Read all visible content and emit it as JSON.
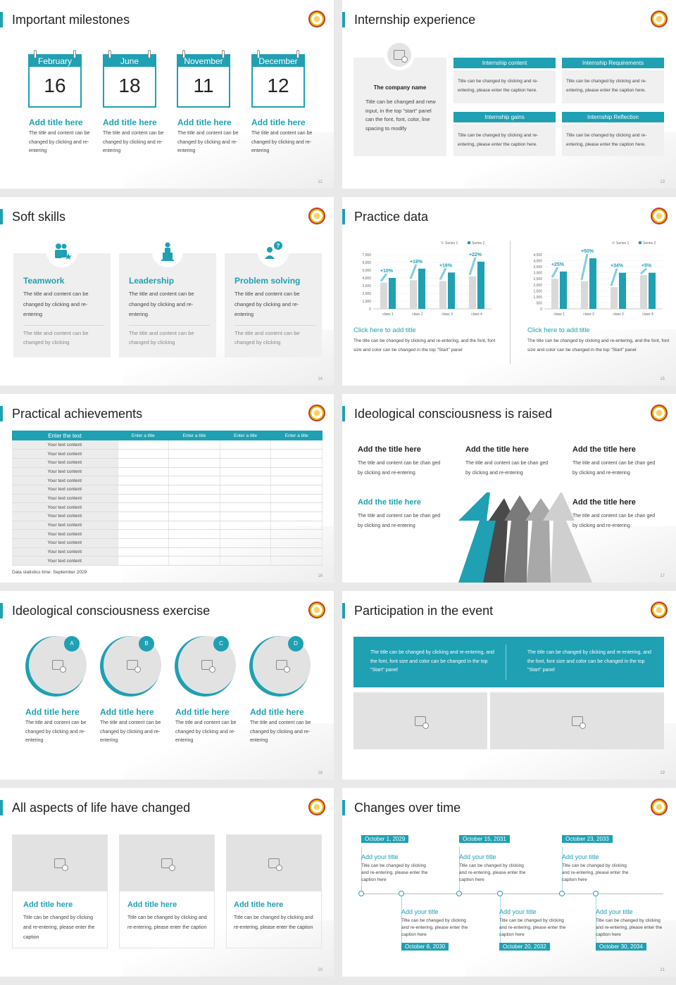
{
  "slides": {
    "s12": {
      "title": "Important milestones",
      "page": "12",
      "items": [
        {
          "month": "February",
          "day": "16",
          "title": "Add title here",
          "desc": "The title and content can be changed by clicking and re-entering"
        },
        {
          "month": "June",
          "day": "18",
          "title": "Add title here",
          "desc": "The title and content can be changed by clicking and re-entering"
        },
        {
          "month": "November",
          "day": "11",
          "title": "Add title here",
          "desc": "The title and content can be changed by clicking and re-entering"
        },
        {
          "month": "December",
          "day": "12",
          "title": "Add title here",
          "desc": "The title and content can be changed by clicking and re-entering"
        }
      ]
    },
    "s13": {
      "title": "Internship experience",
      "page": "13",
      "company_title": "The company name",
      "company_desc": "Title can be changed and new input, in the top \"start\" panel can the font, font, color, line spacing to modify",
      "boxes": [
        {
          "header": "Internship content",
          "desc": "Title can be changed by clicking and re-entering, please enter the caption here."
        },
        {
          "header": "Internship Requirements",
          "desc": "Title can be changed by clicking and re-entering, please enter the caption here."
        },
        {
          "header": "Internship gains",
          "desc": "Title can be changed by clicking and re-entering, please enter the caption here."
        },
        {
          "header": "Internship Reflection",
          "desc": "Title can be changed by clicking and re-entering, please enter the caption here."
        }
      ]
    },
    "s14": {
      "title": "Soft skills",
      "page": "14",
      "cards": [
        {
          "title": "Teamwork",
          "desc": "The title and content can be changed by clicking and re-entering",
          "note": "The title and content can be changed by clicking"
        },
        {
          "title": "Leadership",
          "desc": "The title and content can be changed by clicking and re-entering",
          "note": "The title and content can be changed by clicking"
        },
        {
          "title": "Problem solving",
          "desc": "The title and content can be changed by clicking and re-entering",
          "note": "The title and content can be changed by clicking"
        }
      ]
    },
    "s15": {
      "title": "Practice data",
      "page": "15",
      "captions": [
        {
          "title": "Click here to add title",
          "desc": "The title can be changed by clicking and re-entering, and the font, font size and color can be changed in the top \"Start\" panel"
        },
        {
          "title": "Click here to add title",
          "desc": "The title can be changed by clicking and re-entering, and the font, font size and color can be changed in the top \"Start\" panel"
        }
      ]
    },
    "s16": {
      "title": "Practical achievements",
      "page": "16",
      "headers": [
        "Enter the text",
        "Enter a title",
        "Enter a title",
        "Enter a title",
        "Enter a title"
      ],
      "row_label": "Your text content",
      "footnote": "Data statistics time: September 2029"
    },
    "s17": {
      "title": "Ideological consciousness is raised",
      "page": "17",
      "items": [
        {
          "title": "Add the title here",
          "desc": "The title and content can be chan ged by clicking and re-entering"
        },
        {
          "title": "Add the title here",
          "desc": "The title and content can be chan ged by clicking and re-entering"
        },
        {
          "title": "Add the title here",
          "desc": "The title and content can be chan ged by clicking and re-entering"
        },
        {
          "title": "Add the title here",
          "desc": "The title and content can be chan ged by clicking and re-entering"
        },
        {
          "title": "Add the title here",
          "desc": "The title and content can be chan ged by clicking and re-entering"
        }
      ]
    },
    "s18": {
      "title": "Ideological consciousness exercise",
      "page": "18",
      "items": [
        {
          "badge": "A",
          "title": "Add title here",
          "desc": "The title and content can be changed by clicking and re-entering"
        },
        {
          "badge": "B",
          "title": "Add title here",
          "desc": "The title and content can be changed by clicking and re-entering"
        },
        {
          "badge": "C",
          "title": "Add title here",
          "desc": "The title and content can be changed by clicking and re-entering"
        },
        {
          "badge": "D",
          "title": "Add title here",
          "desc": "The title and content can be changed by clicking and re-entering"
        }
      ]
    },
    "s19": {
      "title": "Participation in the event",
      "page": "19",
      "texts": [
        "The title can be changed by clicking and re-entering, and the font, font size and color can be changed in the top \"Start\" panel",
        "The title can be changed by clicking and re-entering, and the font, font size and color can be changed in the top \"Start\" panel"
      ]
    },
    "s20": {
      "title": "All aspects of life have changed",
      "page": "20",
      "cards": [
        {
          "title": "Add title here",
          "desc": "Title can be changed by clicking and re-entering, please enter the caption"
        },
        {
          "title": "Add title here",
          "desc": "Title can be changed by clicking and re-entering, please enter the caption"
        },
        {
          "title": "Add title here",
          "desc": "Title can be changed by clicking and re-entering, please enter the caption"
        }
      ]
    },
    "s21": {
      "title": "Changes over time",
      "page": "21",
      "top": [
        {
          "date": "October 1, 2029",
          "title": "Add your title",
          "desc": "Title can be changed by clicking and re-entering, please enter the caption here"
        },
        {
          "date": "October 15, 2031",
          "title": "Add your title",
          "desc": "Title can be changed by clicking and re-entering, please enter the caption here"
        },
        {
          "date": "October 23, 2033",
          "title": "Add your title",
          "desc": "Title can be changed by clicking and re-entering, please enter the caption here"
        }
      ],
      "bottom": [
        {
          "date": "October 8, 2030",
          "title": "Add your title",
          "desc": "Title can be changed by clicking and re-entering, please enter the caption here"
        },
        {
          "date": "October 20, 2032",
          "title": "Add your title",
          "desc": "Title can be changed by clicking and re-entering, please enter the caption here"
        },
        {
          "date": "October 30, 2034",
          "title": "Add your title",
          "desc": "Title can be changed by clicking and re-entering, please enter the caption here"
        }
      ]
    }
  },
  "colors": {
    "accent": "#1fa0b3",
    "gray_bar": "#d9d9d9",
    "card": "#efefef"
  },
  "chart_data": [
    {
      "type": "bar",
      "categories": [
        "class 1",
        "class 2",
        "class 3",
        "class 4"
      ],
      "series": [
        {
          "name": "Series 1",
          "values": [
            3400,
            3700,
            3600,
            4200
          ]
        },
        {
          "name": "Series 2",
          "values": [
            4000,
            5200,
            4700,
            6100
          ]
        }
      ],
      "annotations": [
        "+10%",
        "+18%",
        "+16%",
        "+22%"
      ],
      "yticks": [
        "7,000",
        "6,000",
        "5,000",
        "4,000",
        "3,000",
        "2,000",
        "1,000",
        "0"
      ],
      "ylim": [
        0,
        7000
      ],
      "legend": "top-right"
    },
    {
      "type": "bar",
      "categories": [
        "class 1",
        "class 2",
        "class 3",
        "class 4"
      ],
      "series": [
        {
          "name": "Series 1",
          "values": [
            2500,
            2300,
            1800,
            2800
          ]
        },
        {
          "name": "Series 2",
          "values": [
            3100,
            4200,
            3000,
            3000
          ]
        }
      ],
      "annotations": [
        "+25%",
        "+50%",
        "+34%",
        "+5%"
      ],
      "yticks": [
        "4,500",
        "4,000",
        "3,500",
        "3,000",
        "2,500",
        "2,000",
        "1,500",
        "1,000",
        "500",
        "0"
      ],
      "ylim": [
        0,
        4500
      ],
      "legend": "top-right"
    }
  ]
}
